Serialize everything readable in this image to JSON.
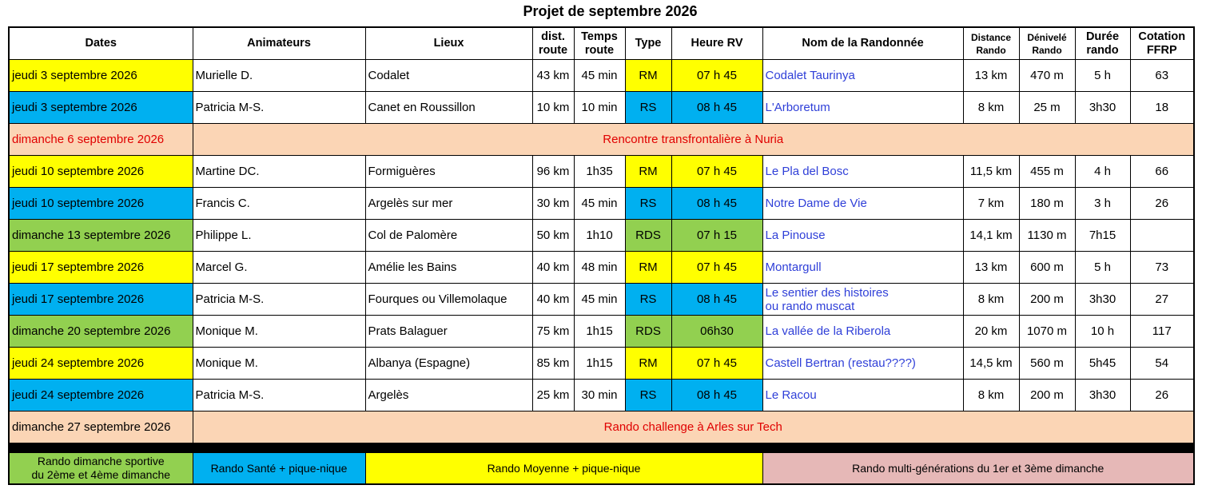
{
  "title": "Projet de septembre 2026",
  "headers": {
    "dates": "Dates",
    "animateurs": "Animateurs",
    "lieux": "Lieux",
    "dist_route": "dist. route",
    "temps_route": "Temps route",
    "type": "Type",
    "heure_rv": "Heure RV",
    "nom": "Nom  de la Randonnée",
    "distance_rando": "Distance Rando",
    "denivele": "Dénivelé Rando",
    "duree": "Durée rando",
    "cotation": "Cotation FFRP"
  },
  "rows": [
    {
      "date": "jeudi 3 septembre 2026",
      "animateur": "Murielle D.",
      "lieu": "Codalet",
      "dist": "43 km",
      "temps": "45 min",
      "type": "RM",
      "heure": "07 h 45",
      "nom": "Codalet Taurinya",
      "distance": "13 km",
      "denivele": "470 m",
      "duree": "5 h",
      "cotation": "63"
    },
    {
      "date": "jeudi 3 septembre 2026",
      "animateur": "Patricia M-S.",
      "lieu": "Canet en Roussillon",
      "dist": "10 km",
      "temps": "10 min",
      "type": "RS",
      "heure": "08 h 45",
      "nom": "L'Arboretum",
      "distance": "8 km",
      "denivele": "25 m",
      "duree": "3h30",
      "cotation": "18"
    },
    {
      "date": "dimanche 6 septembre 2026",
      "event": "Rencontre transfrontalière à Nuria"
    },
    {
      "date": "jeudi 10 septembre 2026",
      "animateur": "Martine DC.",
      "lieu": "Formiguères",
      "dist": "96 km",
      "temps": "1h35",
      "type": "RM",
      "heure": "07 h 45",
      "nom": "Le Pla del Bosc",
      "distance": "11,5 km",
      "denivele": "455 m",
      "duree": "4 h",
      "cotation": "66"
    },
    {
      "date": "jeudi 10 septembre 2026",
      "animateur": "Francis C.",
      "lieu": "Argelès sur mer",
      "dist": "30 km",
      "temps": "45 min",
      "type": "RS",
      "heure": "08 h 45",
      "nom": "Notre Dame de Vie",
      "distance": "7 km",
      "denivele": "180 m",
      "duree": "3 h",
      "cotation": "26"
    },
    {
      "date": "dimanche 13 septembre 2026",
      "animateur": "Philippe L.",
      "lieu": "Col de Palomère",
      "dist": "50 km",
      "temps": "1h10",
      "type": "RDS",
      "heure": "07 h 15",
      "nom": "La Pinouse",
      "distance": "14,1 km",
      "denivele": "1130 m",
      "duree": "7h15",
      "cotation": ""
    },
    {
      "date": "jeudi 17 septembre 2026",
      "animateur": "Marcel G.",
      "lieu": "Amélie les Bains",
      "dist": "40 km",
      "temps": "48 min",
      "type": "RM",
      "heure": "07 h 45",
      "nom": "Montargull",
      "distance": "13 km",
      "denivele": "600 m",
      "duree": "5 h",
      "cotation": "73"
    },
    {
      "date": "jeudi 17 septembre 2026",
      "animateur": "Patricia M-S.",
      "lieu": "Fourques ou Villemolaque",
      "dist": "40 km",
      "temps": "45 min",
      "type": "RS",
      "heure": "08 h 45",
      "nom": "Le sentier des histoires",
      "nom2": "ou rando muscat",
      "distance": "8 km",
      "denivele": "200 m",
      "duree": "3h30",
      "cotation": "27"
    },
    {
      "date": "dimanche 20 septembre 2026",
      "animateur": "Monique M.",
      "lieu": "Prats Balaguer",
      "dist": "75 km",
      "temps": "1h15",
      "type": "RDS",
      "heure": "06h30",
      "nom": "La vallée de la Riberola",
      "distance": "20 km",
      "denivele": "1070 m",
      "duree": "10 h",
      "cotation": "117"
    },
    {
      "date": "jeudi 24 septembre 2026",
      "animateur": "Monique M.",
      "lieu": "Albanya (Espagne)",
      "dist": "85 km",
      "temps": "1h15",
      "type": "RM",
      "heure": "07 h 45",
      "nom": "Castell Bertran (restau????)",
      "distance": "14,5 km",
      "denivele": "560 m",
      "duree": "5h45",
      "cotation": "54"
    },
    {
      "date": "jeudi 24 septembre 2026",
      "animateur": "Patricia M-S.",
      "lieu": "Argelès",
      "dist": "25 km",
      "temps": "30 min",
      "type": "RS",
      "heure": "08 h 45",
      "nom": "Le Racou",
      "distance": "8 km",
      "denivele": "200 m",
      "duree": "3h30",
      "cotation": "26"
    },
    {
      "date": "dimanche 27 septembre 2026",
      "event": "Rando challenge à  Arles sur Tech"
    }
  ],
  "legend": {
    "rds_line1": "Rando dimanche sportive",
    "rds_line2": "du 2ème et 4ème dimanche",
    "rs": "Rando Santé + pique-nique",
    "rm": "Rando Moyenne + pique-nique",
    "multi": "Rando multi-générations du 1er et 3ème dimanche"
  },
  "colors": {
    "RM": "#ffff00",
    "RS": "#00b0f0",
    "RDS": "#92d050",
    "event": "#fbd5b5",
    "multi": "#e6b8b7",
    "link": "#2f3fd8",
    "event_text": "#e00000"
  }
}
